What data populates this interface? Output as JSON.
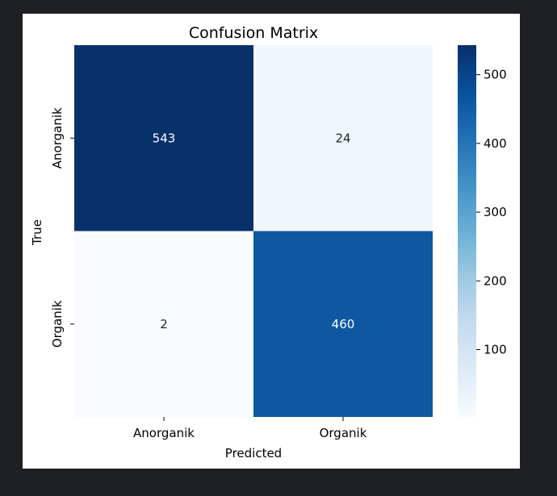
{
  "chart_data": {
    "type": "heatmap",
    "title": "Confusion Matrix",
    "xlabel": "Predicted",
    "ylabel": "True",
    "x_categories": [
      "Anorganik",
      "Organik"
    ],
    "y_categories": [
      "Anorganik",
      "Organik"
    ],
    "values": [
      [
        543,
        24
      ],
      [
        2,
        460
      ]
    ],
    "colormap": "Blues",
    "vmin": 2,
    "vmax": 543,
    "colorbar_ticks": [
      100,
      200,
      300,
      400,
      500
    ],
    "colorbar_tick_labels": [
      "100",
      "200",
      "300",
      "400",
      "500"
    ],
    "low_color": "#f7fbff",
    "high_color": "#08306b"
  }
}
